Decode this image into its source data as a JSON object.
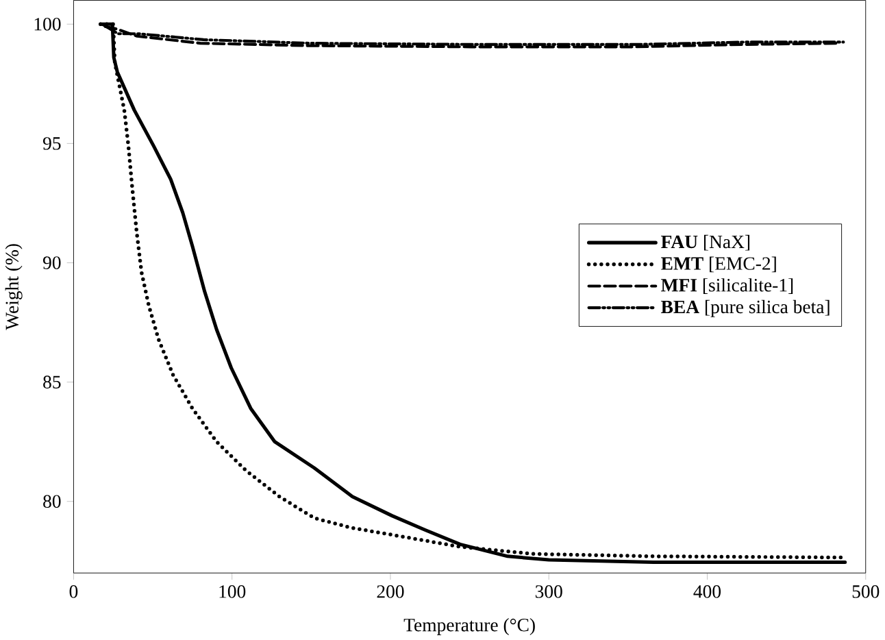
{
  "chart_data": {
    "type": "line",
    "xlabel": "Temperature (°C)",
    "ylabel": "Weight (%)",
    "xlim": [
      0,
      500
    ],
    "ylim": [
      77,
      101
    ],
    "xticks": [
      0,
      100,
      200,
      300,
      400,
      500
    ],
    "yticks": [
      80,
      85,
      90,
      95,
      100
    ],
    "grid": false,
    "legend": "right",
    "series": [
      {
        "name": "**FAU** [NaX]",
        "color": "#000000",
        "line_style": "solid",
        "x": [
          17,
          24.5,
          25.4,
          27.6,
          38.3,
          50.5,
          61.3,
          68.9,
          75,
          82.7,
          90.3,
          99.5,
          111.8,
          127,
          152,
          176,
          201,
          222,
          244,
          274,
          300,
          366,
          487
        ],
        "values": [
          100,
          100,
          98.6,
          98.0,
          96.4,
          94.9,
          93.5,
          92.1,
          90.7,
          88.8,
          87.2,
          85.6,
          83.9,
          82.5,
          81.4,
          80.2,
          79.4,
          78.8,
          78.2,
          77.7,
          77.55,
          77.45,
          77.45
        ]
      },
      {
        "name": "**EMT** [EMC-2]",
        "color": "#000000",
        "line_style": "dotted",
        "x": [
          17,
          25,
          26,
          29,
          32,
          34.6,
          36.8,
          39.8,
          42.9,
          47.5,
          53.6,
          62.8,
          75,
          90.3,
          108.7,
          130,
          152,
          175,
          201,
          244,
          290,
          366,
          485
        ],
        "values": [
          100,
          100,
          98.4,
          97.4,
          96.4,
          94.9,
          93.3,
          91.3,
          89.6,
          88.2,
          86.8,
          85.3,
          83.9,
          82.5,
          81.3,
          80.2,
          79.3,
          78.9,
          78.6,
          78.1,
          77.8,
          77.7,
          77.65
        ]
      },
      {
        "name": "**MFI** [silicalite-1]",
        "color": "#000000",
        "line_style": "dashed",
        "x": [
          20,
          27,
          40,
          80,
          148,
          251,
          354,
          423,
          483
        ],
        "values": [
          99.9,
          99.8,
          99.5,
          99.2,
          99.1,
          99.05,
          99.05,
          99.15,
          99.2
        ]
      },
      {
        "name": "**BEA** [pure silica beta]",
        "color": "#000000",
        "line_style": "dashdotdot",
        "x": [
          18,
          28,
          41,
          82,
          150,
          253,
          356,
          425,
          486
        ],
        "values": [
          100,
          99.6,
          99.6,
          99.35,
          99.2,
          99.15,
          99.15,
          99.25,
          99.25
        ]
      }
    ]
  }
}
